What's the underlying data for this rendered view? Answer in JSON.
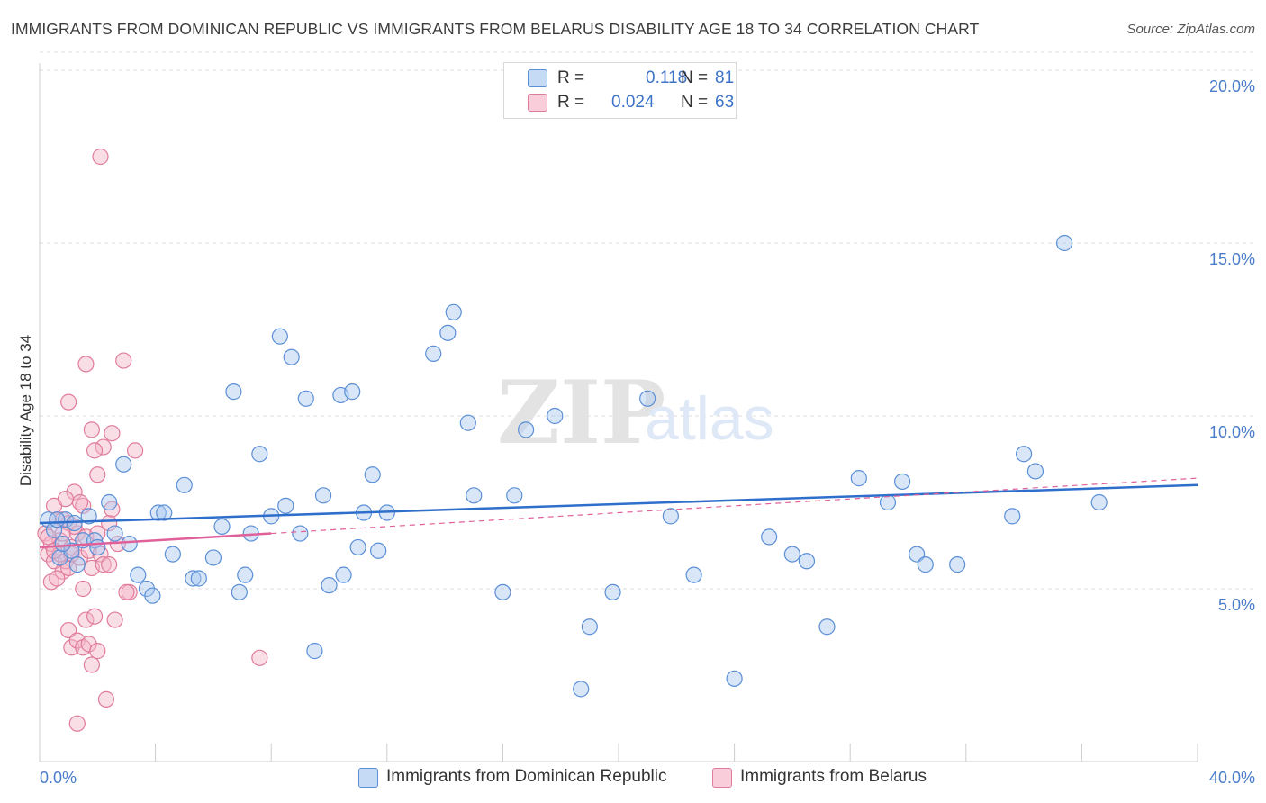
{
  "title": "IMMIGRANTS FROM DOMINICAN REPUBLIC VS IMMIGRANTS FROM BELARUS DISABILITY AGE 18 TO 34 CORRELATION CHART",
  "source": "Source: ZipAtlas.com",
  "watermark": {
    "zip": "ZIP",
    "atlas": "atlas"
  },
  "legend": {
    "rows": [
      {
        "r_label": "R =",
        "r_value": "0.118",
        "n_label": "N =",
        "n_value": "81"
      },
      {
        "r_label": "R =",
        "r_value": "0.024",
        "n_label": "N =",
        "n_value": "63"
      }
    ]
  },
  "colors": {
    "blue_fill": "#a9c8ef",
    "blue_stroke": "#5b8fd6",
    "blue_line": "#2f6fcc",
    "pink_fill": "#f5b6c8",
    "pink_stroke": "#e07c9c",
    "pink_line": "#e0609a",
    "grid": "#dddddd",
    "tick_text": "#4a7cc9"
  },
  "chart_data": {
    "type": "scatter",
    "title": "IMMIGRANTS FROM DOMINICAN REPUBLIC VS IMMIGRANTS FROM BELARUS DISABILITY AGE 18 TO 34 CORRELATION CHART",
    "xlabel": "",
    "ylabel": "Disability Age 18 to 34",
    "xlim": [
      0,
      40
    ],
    "ylim": [
      0,
      20
    ],
    "x_tick_labels": [
      "0.0%",
      "40.0%"
    ],
    "y_ticks": [
      5,
      10,
      15,
      20
    ],
    "y_tick_labels": [
      "5.0%",
      "10.0%",
      "15.0%",
      "20.0%"
    ],
    "grid": "horizontal dashed",
    "legend_position": "top-center",
    "series": [
      {
        "name": "Immigrants from Dominican Republic",
        "r": 0.118,
        "n": 81,
        "trend": {
          "x": [
            0,
            40
          ],
          "y": [
            6.9,
            8.0
          ],
          "style": "solid"
        },
        "points": [
          [
            0.3,
            7.0
          ],
          [
            0.5,
            6.7
          ],
          [
            0.7,
            5.9
          ],
          [
            0.9,
            7.0
          ],
          [
            1.1,
            6.1
          ],
          [
            1.3,
            5.7
          ],
          [
            1.5,
            6.4
          ],
          [
            1.7,
            7.1
          ],
          [
            1.9,
            6.4
          ],
          [
            2.0,
            6.2
          ],
          [
            2.4,
            7.5
          ],
          [
            2.6,
            6.6
          ],
          [
            2.9,
            8.6
          ],
          [
            3.1,
            6.3
          ],
          [
            3.4,
            5.4
          ],
          [
            3.7,
            5.0
          ],
          [
            3.9,
            4.8
          ],
          [
            4.1,
            7.2
          ],
          [
            4.3,
            7.2
          ],
          [
            4.6,
            6.0
          ],
          [
            5.0,
            8.0
          ],
          [
            5.3,
            5.3
          ],
          [
            5.5,
            5.3
          ],
          [
            6.0,
            5.9
          ],
          [
            6.3,
            6.8
          ],
          [
            6.7,
            10.7
          ],
          [
            6.9,
            4.9
          ],
          [
            7.1,
            5.4
          ],
          [
            7.3,
            6.6
          ],
          [
            7.6,
            8.9
          ],
          [
            8.0,
            7.1
          ],
          [
            8.3,
            12.3
          ],
          [
            8.5,
            7.4
          ],
          [
            8.7,
            11.7
          ],
          [
            9.0,
            6.6
          ],
          [
            9.2,
            10.5
          ],
          [
            9.8,
            7.7
          ],
          [
            10.0,
            5.1
          ],
          [
            10.4,
            10.6
          ],
          [
            10.5,
            5.4
          ],
          [
            10.8,
            10.7
          ],
          [
            11.0,
            6.2
          ],
          [
            11.2,
            7.2
          ],
          [
            11.5,
            8.3
          ],
          [
            11.7,
            6.1
          ],
          [
            12.0,
            7.2
          ],
          [
            13.6,
            11.8
          ],
          [
            14.1,
            12.4
          ],
          [
            14.3,
            13.0
          ],
          [
            14.8,
            9.8
          ],
          [
            15.0,
            7.7
          ],
          [
            16.0,
            4.9
          ],
          [
            16.4,
            7.7
          ],
          [
            16.8,
            9.6
          ],
          [
            17.8,
            10.0
          ],
          [
            18.7,
            2.1
          ],
          [
            19.0,
            3.9
          ],
          [
            19.8,
            4.9
          ],
          [
            21.0,
            10.5
          ],
          [
            21.8,
            7.1
          ],
          [
            22.6,
            5.4
          ],
          [
            24.0,
            2.4
          ],
          [
            25.2,
            6.5
          ],
          [
            26.0,
            6.0
          ],
          [
            26.5,
            5.8
          ],
          [
            27.2,
            3.9
          ],
          [
            28.3,
            8.2
          ],
          [
            29.3,
            7.5
          ],
          [
            29.8,
            8.1
          ],
          [
            30.3,
            6.0
          ],
          [
            30.6,
            5.7
          ],
          [
            31.7,
            5.7
          ],
          [
            33.6,
            7.1
          ],
          [
            34.0,
            8.9
          ],
          [
            34.4,
            8.4
          ],
          [
            35.4,
            15.0
          ],
          [
            36.6,
            7.5
          ],
          [
            0.6,
            7.0
          ],
          [
            1.2,
            6.9
          ],
          [
            0.8,
            6.3
          ],
          [
            9.5,
            3.2
          ]
        ]
      },
      {
        "name": "Immigrants from Belarus",
        "r": 0.024,
        "n": 63,
        "trend": {
          "x": [
            0,
            8
          ],
          "y": [
            6.2,
            6.6
          ],
          "style": "solid",
          "extended": {
            "x": [
              8,
              40
            ],
            "y": [
              6.6,
              8.2
            ],
            "style": "dashed"
          }
        },
        "points": [
          [
            0.2,
            6.6
          ],
          [
            0.3,
            6.0
          ],
          [
            0.4,
            5.2
          ],
          [
            0.4,
            6.3
          ],
          [
            0.5,
            7.4
          ],
          [
            0.5,
            5.8
          ],
          [
            0.6,
            7.0
          ],
          [
            0.7,
            6.4
          ],
          [
            0.8,
            5.5
          ],
          [
            0.8,
            7.0
          ],
          [
            0.9,
            5.8
          ],
          [
            1.0,
            6.9
          ],
          [
            1.1,
            6.2
          ],
          [
            1.2,
            7.8
          ],
          [
            1.3,
            6.6
          ],
          [
            1.4,
            5.9
          ],
          [
            1.5,
            7.4
          ],
          [
            1.6,
            6.5
          ],
          [
            1.7,
            6.1
          ],
          [
            1.8,
            5.6
          ],
          [
            2.0,
            6.6
          ],
          [
            2.0,
            8.3
          ],
          [
            2.1,
            6.0
          ],
          [
            2.2,
            5.7
          ],
          [
            2.4,
            6.9
          ],
          [
            2.5,
            7.3
          ],
          [
            2.7,
            6.3
          ],
          [
            2.9,
            11.6
          ],
          [
            3.1,
            4.9
          ],
          [
            3.3,
            9.0
          ],
          [
            1.0,
            3.8
          ],
          [
            1.1,
            3.3
          ],
          [
            1.3,
            3.5
          ],
          [
            1.5,
            3.3
          ],
          [
            1.6,
            4.1
          ],
          [
            1.7,
            3.4
          ],
          [
            1.8,
            2.8
          ],
          [
            1.9,
            4.2
          ],
          [
            2.0,
            3.2
          ],
          [
            2.3,
            1.8
          ],
          [
            2.5,
            9.5
          ],
          [
            2.2,
            9.1
          ],
          [
            1.9,
            9.0
          ],
          [
            1.8,
            9.6
          ],
          [
            1.6,
            11.5
          ],
          [
            1.0,
            10.4
          ],
          [
            2.1,
            17.5
          ],
          [
            1.4,
            7.5
          ],
          [
            1.2,
            6.8
          ],
          [
            0.9,
            7.6
          ],
          [
            0.7,
            6.0
          ],
          [
            1.5,
            5.0
          ],
          [
            2.6,
            4.1
          ],
          [
            3.0,
            4.9
          ],
          [
            7.6,
            3.0
          ],
          [
            1.3,
            1.1
          ],
          [
            0.6,
            5.3
          ],
          [
            1.0,
            5.6
          ],
          [
            0.3,
            6.5
          ],
          [
            0.8,
            6.6
          ],
          [
            1.1,
            6.0
          ],
          [
            2.4,
            5.7
          ],
          [
            0.5,
            6.1
          ]
        ]
      }
    ]
  },
  "bottom_legend": [
    "Immigrants from Dominican Republic",
    "Immigrants from Belarus"
  ]
}
